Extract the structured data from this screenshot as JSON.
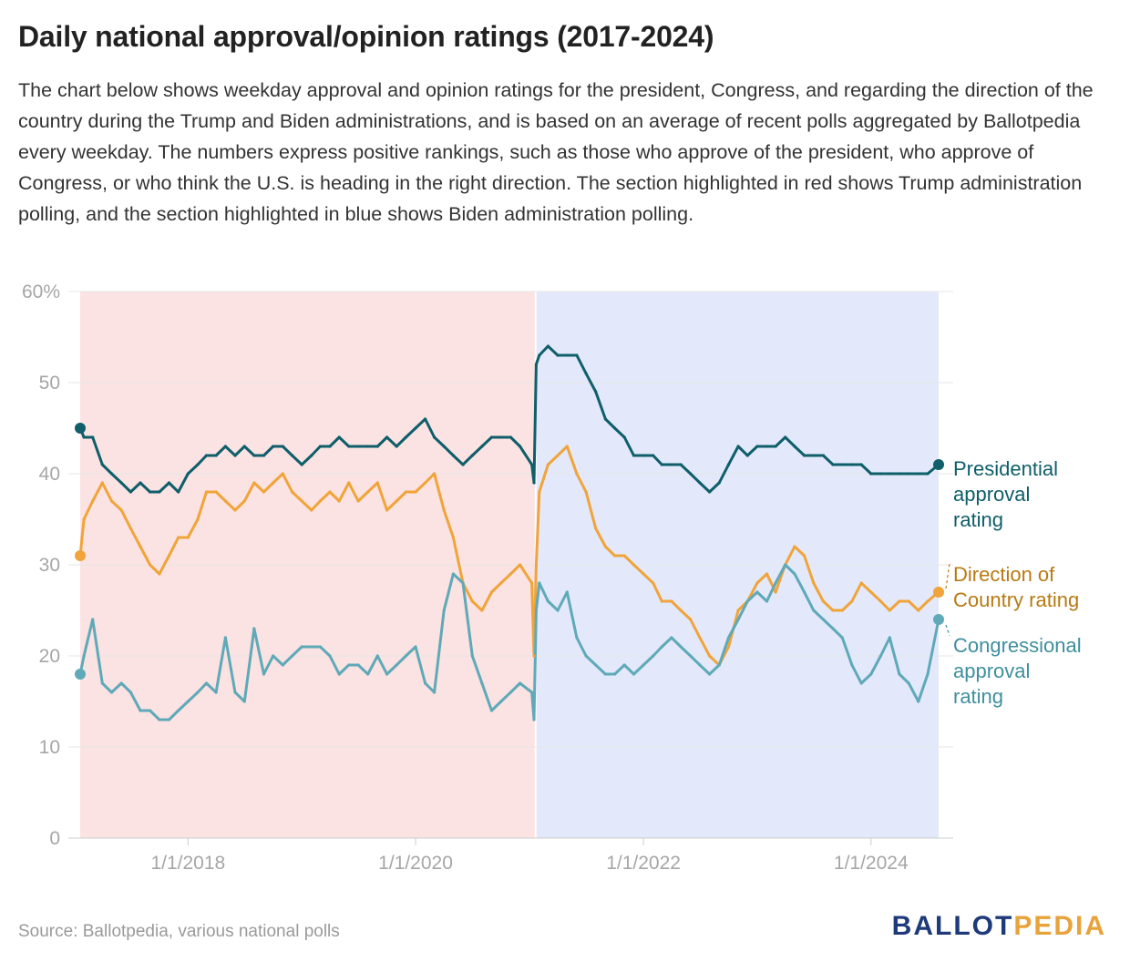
{
  "title": "Daily national approval/opinion ratings (2017-2024)",
  "subtitle": "The chart below shows weekday approval and opinion ratings for the president, Congress, and regarding the direction of the country during the Trump and Biden administrations, and is based on an average of recent polls aggregated by Ballotpedia every weekday. The numbers express positive rankings, such as those who approve of the president, who approve of Congress, or who think the U.S. is heading in the right direction. The section highlighted in red shows Trump administration polling, and the section highlighted in blue shows Biden administration polling.",
  "source": "Source: Ballotpedia, various national polls",
  "logo": {
    "part1": "BALLOT",
    "part2": "PEDIA"
  },
  "colors": {
    "presidential": "#0f5e6a",
    "direction": "#f0a43a",
    "congressional": "#5fa9b8",
    "trump_band": "#fbe3e3",
    "biden_band": "#e3e9fb",
    "grid": "#e6e6e6",
    "tick": "#a6a6a6"
  },
  "chart_data": {
    "type": "line",
    "x_type": "date",
    "ylim": [
      0,
      60
    ],
    "y_ticks": [
      0,
      10,
      20,
      30,
      40,
      50,
      60
    ],
    "y_tick_labels": [
      "0",
      "10",
      "20",
      "30",
      "40",
      "50",
      "60%"
    ],
    "x_range": [
      "2017-01-20",
      "2024-08-05"
    ],
    "x_ticks": [
      "2018-01-01",
      "2020-01-01",
      "2022-01-01",
      "2024-01-01"
    ],
    "x_tick_labels": [
      "1/1/2018",
      "1/1/2020",
      "1/1/2022",
      "1/1/2024"
    ],
    "grid": true,
    "bands": [
      {
        "administration": "Trump",
        "start": "2017-01-20",
        "end": "2021-01-20",
        "color": "#fbe3e3"
      },
      {
        "administration": "Biden",
        "start": "2021-01-20",
        "end": "2024-08-05",
        "color": "#e3e9fb"
      }
    ],
    "series": [
      {
        "name": "Presidential approval rating",
        "label_lines": [
          "Presidential",
          "approval",
          "rating"
        ],
        "color": "#0f5e6a",
        "x": [
          "2017-01-20",
          "2017-02-01",
          "2017-03-01",
          "2017-04-01",
          "2017-05-01",
          "2017-06-01",
          "2017-07-01",
          "2017-08-01",
          "2017-09-01",
          "2017-10-01",
          "2017-11-01",
          "2017-12-01",
          "2018-01-01",
          "2018-02-01",
          "2018-03-01",
          "2018-04-01",
          "2018-05-01",
          "2018-06-01",
          "2018-07-01",
          "2018-08-01",
          "2018-09-01",
          "2018-10-01",
          "2018-11-01",
          "2018-12-01",
          "2019-01-01",
          "2019-02-01",
          "2019-03-01",
          "2019-04-01",
          "2019-05-01",
          "2019-06-01",
          "2019-07-01",
          "2019-08-01",
          "2019-09-01",
          "2019-10-01",
          "2019-11-01",
          "2019-12-01",
          "2020-01-01",
          "2020-02-01",
          "2020-03-01",
          "2020-04-01",
          "2020-05-01",
          "2020-06-01",
          "2020-07-01",
          "2020-08-01",
          "2020-09-01",
          "2020-10-01",
          "2020-11-01",
          "2020-12-01",
          "2021-01-08",
          "2021-01-15",
          "2021-01-22",
          "2021-02-01",
          "2021-03-01",
          "2021-04-01",
          "2021-05-01",
          "2021-06-01",
          "2021-07-01",
          "2021-08-01",
          "2021-09-01",
          "2021-10-01",
          "2021-11-01",
          "2021-12-01",
          "2022-01-01",
          "2022-02-01",
          "2022-03-01",
          "2022-04-01",
          "2022-05-01",
          "2022-06-01",
          "2022-07-01",
          "2022-08-01",
          "2022-09-01",
          "2022-10-01",
          "2022-11-01",
          "2022-12-01",
          "2023-01-01",
          "2023-02-01",
          "2023-03-01",
          "2023-04-01",
          "2023-05-01",
          "2023-06-01",
          "2023-07-01",
          "2023-08-01",
          "2023-09-01",
          "2023-10-01",
          "2023-11-01",
          "2023-12-01",
          "2024-01-01",
          "2024-02-01",
          "2024-03-01",
          "2024-04-01",
          "2024-05-01",
          "2024-06-01",
          "2024-07-01",
          "2024-08-05"
        ],
        "values": [
          45,
          44,
          44,
          41,
          40,
          39,
          38,
          39,
          38,
          38,
          39,
          38,
          40,
          41,
          42,
          42,
          43,
          42,
          43,
          42,
          42,
          43,
          43,
          42,
          41,
          42,
          43,
          43,
          44,
          43,
          43,
          43,
          43,
          44,
          43,
          44,
          45,
          46,
          44,
          43,
          42,
          41,
          42,
          43,
          44,
          44,
          44,
          43,
          41,
          39,
          52,
          53,
          54,
          53,
          53,
          53,
          51,
          49,
          46,
          45,
          44,
          42,
          42,
          42,
          41,
          41,
          41,
          40,
          39,
          38,
          39,
          41,
          43,
          42,
          43,
          43,
          43,
          44,
          43,
          42,
          42,
          42,
          41,
          41,
          41,
          41,
          40,
          40,
          40,
          40,
          40,
          40,
          40,
          41
        ]
      },
      {
        "name": "Direction of Country rating",
        "label_lines": [
          "Direction of",
          "Country rating"
        ],
        "color": "#f0a43a",
        "x": [
          "2017-01-20",
          "2017-02-01",
          "2017-03-01",
          "2017-04-01",
          "2017-05-01",
          "2017-06-01",
          "2017-07-01",
          "2017-08-01",
          "2017-09-01",
          "2017-10-01",
          "2017-11-01",
          "2017-12-01",
          "2018-01-01",
          "2018-02-01",
          "2018-03-01",
          "2018-04-01",
          "2018-05-01",
          "2018-06-01",
          "2018-07-01",
          "2018-08-01",
          "2018-09-01",
          "2018-10-01",
          "2018-11-01",
          "2018-12-01",
          "2019-01-01",
          "2019-02-01",
          "2019-03-01",
          "2019-04-01",
          "2019-05-01",
          "2019-06-01",
          "2019-07-01",
          "2019-08-01",
          "2019-09-01",
          "2019-10-01",
          "2019-11-01",
          "2019-12-01",
          "2020-01-01",
          "2020-02-01",
          "2020-03-01",
          "2020-04-01",
          "2020-05-01",
          "2020-06-01",
          "2020-07-01",
          "2020-08-01",
          "2020-09-01",
          "2020-10-01",
          "2020-11-01",
          "2020-12-01",
          "2021-01-08",
          "2021-01-15",
          "2021-01-22",
          "2021-02-01",
          "2021-03-01",
          "2021-04-01",
          "2021-05-01",
          "2021-06-01",
          "2021-07-01",
          "2021-08-01",
          "2021-09-01",
          "2021-10-01",
          "2021-11-01",
          "2021-12-01",
          "2022-01-01",
          "2022-02-01",
          "2022-03-01",
          "2022-04-01",
          "2022-05-01",
          "2022-06-01",
          "2022-07-01",
          "2022-08-01",
          "2022-09-01",
          "2022-10-01",
          "2022-11-01",
          "2022-12-01",
          "2023-01-01",
          "2023-02-01",
          "2023-03-01",
          "2023-04-01",
          "2023-05-01",
          "2023-06-01",
          "2023-07-01",
          "2023-08-01",
          "2023-09-01",
          "2023-10-01",
          "2023-11-01",
          "2023-12-01",
          "2024-01-01",
          "2024-02-01",
          "2024-03-01",
          "2024-04-01",
          "2024-05-01",
          "2024-06-01",
          "2024-07-01",
          "2024-08-05"
        ],
        "values": [
          31,
          35,
          37,
          39,
          37,
          36,
          34,
          32,
          30,
          29,
          31,
          33,
          33,
          35,
          38,
          38,
          37,
          36,
          37,
          39,
          38,
          39,
          40,
          38,
          37,
          36,
          37,
          38,
          37,
          39,
          37,
          38,
          39,
          36,
          37,
          38,
          38,
          39,
          40,
          36,
          33,
          28,
          26,
          25,
          27,
          28,
          29,
          30,
          28,
          20,
          30,
          38,
          41,
          42,
          43,
          40,
          38,
          34,
          32,
          31,
          31,
          30,
          29,
          28,
          26,
          26,
          25,
          24,
          22,
          20,
          19,
          21,
          25,
          26,
          28,
          29,
          27,
          30,
          32,
          31,
          28,
          26,
          25,
          25,
          26,
          28,
          27,
          26,
          25,
          26,
          26,
          25,
          26,
          27
        ]
      },
      {
        "name": "Congressional approval rating",
        "label_lines": [
          "Congressional",
          "approval",
          "rating"
        ],
        "color": "#5fa9b8",
        "x": [
          "2017-01-20",
          "2017-02-01",
          "2017-03-01",
          "2017-04-01",
          "2017-05-01",
          "2017-06-01",
          "2017-07-01",
          "2017-08-01",
          "2017-09-01",
          "2017-10-01",
          "2017-11-01",
          "2017-12-01",
          "2018-01-01",
          "2018-02-01",
          "2018-03-01",
          "2018-04-01",
          "2018-05-01",
          "2018-06-01",
          "2018-07-01",
          "2018-08-01",
          "2018-09-01",
          "2018-10-01",
          "2018-11-01",
          "2018-12-01",
          "2019-01-01",
          "2019-02-01",
          "2019-03-01",
          "2019-04-01",
          "2019-05-01",
          "2019-06-01",
          "2019-07-01",
          "2019-08-01",
          "2019-09-01",
          "2019-10-01",
          "2019-11-01",
          "2019-12-01",
          "2020-01-01",
          "2020-02-01",
          "2020-03-01",
          "2020-04-01",
          "2020-05-01",
          "2020-06-01",
          "2020-07-01",
          "2020-08-01",
          "2020-09-01",
          "2020-10-01",
          "2020-11-01",
          "2020-12-01",
          "2021-01-08",
          "2021-01-15",
          "2021-01-22",
          "2021-02-01",
          "2021-03-01",
          "2021-04-01",
          "2021-05-01",
          "2021-06-01",
          "2021-07-01",
          "2021-08-01",
          "2021-09-01",
          "2021-10-01",
          "2021-11-01",
          "2021-12-01",
          "2022-01-01",
          "2022-02-01",
          "2022-03-01",
          "2022-04-01",
          "2022-05-01",
          "2022-06-01",
          "2022-07-01",
          "2022-08-01",
          "2022-09-01",
          "2022-10-01",
          "2022-11-01",
          "2022-12-01",
          "2023-01-01",
          "2023-02-01",
          "2023-03-01",
          "2023-04-01",
          "2023-05-01",
          "2023-06-01",
          "2023-07-01",
          "2023-08-01",
          "2023-09-01",
          "2023-10-01",
          "2023-11-01",
          "2023-12-01",
          "2024-01-01",
          "2024-02-01",
          "2024-03-01",
          "2024-04-01",
          "2024-05-01",
          "2024-06-01",
          "2024-07-01",
          "2024-08-05"
        ],
        "values": [
          18,
          20,
          24,
          17,
          16,
          17,
          16,
          14,
          14,
          13,
          13,
          14,
          15,
          16,
          17,
          16,
          22,
          16,
          15,
          23,
          18,
          20,
          19,
          20,
          21,
          21,
          21,
          20,
          18,
          19,
          19,
          18,
          20,
          18,
          19,
          20,
          21,
          17,
          16,
          25,
          29,
          28,
          20,
          17,
          14,
          15,
          16,
          17,
          16,
          13,
          25,
          28,
          26,
          25,
          27,
          22,
          20,
          19,
          18,
          18,
          19,
          18,
          19,
          20,
          21,
          22,
          21,
          20,
          19,
          18,
          19,
          22,
          24,
          26,
          27,
          26,
          28,
          30,
          29,
          27,
          25,
          24,
          23,
          22,
          19,
          17,
          18,
          20,
          22,
          18,
          17,
          15,
          18,
          24
        ]
      }
    ]
  }
}
